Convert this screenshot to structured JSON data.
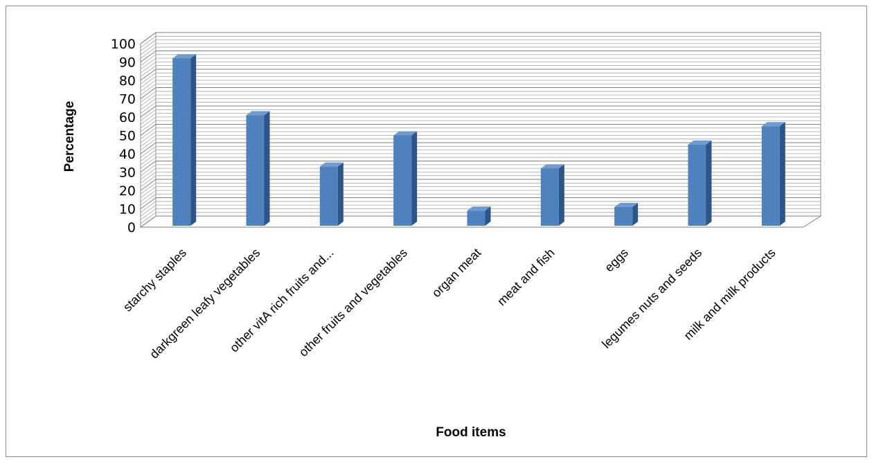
{
  "chart_data": {
    "type": "bar",
    "title": "",
    "xlabel": "Food items",
    "ylabel": "Percentage",
    "ylim": [
      0,
      100
    ],
    "yticks": [
      "0",
      "10",
      "20",
      "30",
      "40",
      "50",
      "60",
      "70",
      "80",
      "90",
      "100"
    ],
    "categories": [
      "starchy staples",
      "darkgreen leafy vegetables",
      "other vitA rich fruits and...",
      "other fruits and vegetables",
      "organ meat",
      "meat and fish",
      "eggs",
      "legumes nuts and seeds",
      "milk and milk products"
    ],
    "values": [
      92,
      61,
      33,
      50,
      9,
      32,
      11,
      45,
      55
    ],
    "grid": true,
    "legend": "none",
    "style3d": true
  },
  "colors": {
    "bar_front": "#4f81bd",
    "bar_side": "#2d5587",
    "bar_top": "#6f9bd1",
    "grid": "#8c8c8c"
  }
}
